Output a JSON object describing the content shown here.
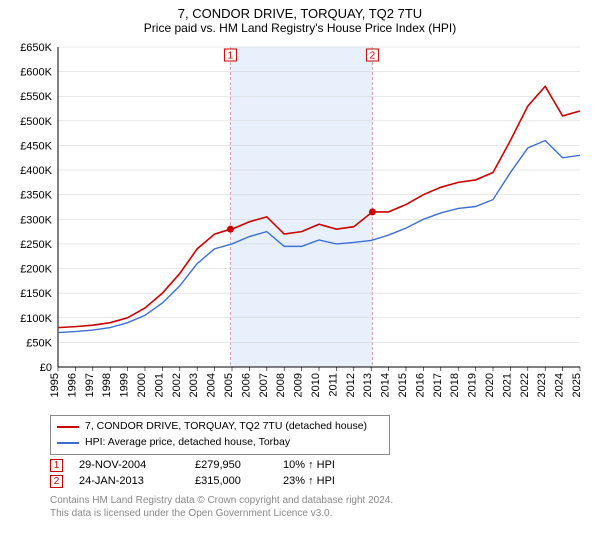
{
  "title": "7, CONDOR DRIVE, TORQUAY, TQ2 7TU",
  "subtitle": "Price paid vs. HM Land Registry's House Price Index (HPI)",
  "chart": {
    "type": "line",
    "background_color": "#ffffff",
    "grid_color": "#d0d0d0",
    "axis_color": "#000000",
    "y_axis": {
      "min": 0,
      "max": 650000,
      "tick_step": 50000,
      "tick_labels": [
        "£0",
        "£50K",
        "£100K",
        "£150K",
        "£200K",
        "£250K",
        "£300K",
        "£350K",
        "£400K",
        "£450K",
        "£500K",
        "£550K",
        "£600K",
        "£650K"
      ],
      "label_fontsize": 11
    },
    "x_axis": {
      "min": 1995,
      "max": 2025,
      "tick_step": 1,
      "tick_labels": [
        "1995",
        "1996",
        "1997",
        "1998",
        "1999",
        "2000",
        "2001",
        "2002",
        "2003",
        "2004",
        "2005",
        "2006",
        "2007",
        "2008",
        "2009",
        "2010",
        "2011",
        "2012",
        "2013",
        "2014",
        "2015",
        "2016",
        "2017",
        "2018",
        "2019",
        "2020",
        "2021",
        "2022",
        "2023",
        "2024",
        "2025"
      ],
      "label_fontsize": 11,
      "label_rotation": -90
    },
    "sale_band": {
      "start_year": 2004.91,
      "end_year": 2013.07,
      "fill": "#e8f0fb",
      "border_color": "#d6a0a0",
      "border_dash": "3,2"
    },
    "series": [
      {
        "name": "price_paid",
        "color": "#cc0000",
        "line_width": 1.6,
        "points": [
          [
            1995,
            80000
          ],
          [
            1996,
            82000
          ],
          [
            1997,
            85000
          ],
          [
            1998,
            90000
          ],
          [
            1999,
            100000
          ],
          [
            2000,
            120000
          ],
          [
            2001,
            150000
          ],
          [
            2002,
            190000
          ],
          [
            2003,
            240000
          ],
          [
            2004,
            270000
          ],
          [
            2004.91,
            279950
          ],
          [
            2005,
            280000
          ],
          [
            2006,
            295000
          ],
          [
            2007,
            305000
          ],
          [
            2008,
            270000
          ],
          [
            2009,
            275000
          ],
          [
            2010,
            290000
          ],
          [
            2011,
            280000
          ],
          [
            2012,
            285000
          ],
          [
            2013.07,
            315000
          ],
          [
            2014,
            315000
          ],
          [
            2015,
            330000
          ],
          [
            2016,
            350000
          ],
          [
            2017,
            365000
          ],
          [
            2018,
            375000
          ],
          [
            2019,
            380000
          ],
          [
            2020,
            395000
          ],
          [
            2021,
            460000
          ],
          [
            2022,
            530000
          ],
          [
            2023,
            570000
          ],
          [
            2024,
            510000
          ],
          [
            2025,
            520000
          ]
        ]
      },
      {
        "name": "hpi",
        "color": "#3b6fd6",
        "line_width": 1.4,
        "points": [
          [
            1995,
            70000
          ],
          [
            1996,
            72000
          ],
          [
            1997,
            75000
          ],
          [
            1998,
            80000
          ],
          [
            1999,
            90000
          ],
          [
            2000,
            105000
          ],
          [
            2001,
            130000
          ],
          [
            2002,
            165000
          ],
          [
            2003,
            210000
          ],
          [
            2004,
            240000
          ],
          [
            2005,
            250000
          ],
          [
            2006,
            265000
          ],
          [
            2007,
            275000
          ],
          [
            2008,
            245000
          ],
          [
            2009,
            245000
          ],
          [
            2010,
            258000
          ],
          [
            2011,
            250000
          ],
          [
            2012,
            253000
          ],
          [
            2013,
            257000
          ],
          [
            2014,
            268000
          ],
          [
            2015,
            282000
          ],
          [
            2016,
            300000
          ],
          [
            2017,
            313000
          ],
          [
            2018,
            322000
          ],
          [
            2019,
            326000
          ],
          [
            2020,
            340000
          ],
          [
            2021,
            395000
          ],
          [
            2022,
            445000
          ],
          [
            2023,
            460000
          ],
          [
            2024,
            425000
          ],
          [
            2025,
            430000
          ]
        ]
      }
    ],
    "sale_markers": [
      {
        "id": "1",
        "year": 2004.91,
        "value": 279950,
        "color": "#cc0000"
      },
      {
        "id": "2",
        "year": 2013.07,
        "value": 315000,
        "color": "#cc0000"
      }
    ]
  },
  "legend": [
    {
      "color": "#cc0000",
      "label": "7, CONDOR DRIVE, TORQUAY, TQ2 7TU (detached house)"
    },
    {
      "color": "#3b6fd6",
      "label": "HPI: Average price, detached house, Torbay"
    }
  ],
  "sales": [
    {
      "id": "1",
      "date": "29-NOV-2004",
      "price": "£279,950",
      "delta": "10% ↑ HPI"
    },
    {
      "id": "2",
      "date": "24-JAN-2013",
      "price": "£315,000",
      "delta": "23% ↑ HPI"
    }
  ],
  "footer": {
    "line1": "Contains HM Land Registry data © Crown copyright and database right 2024.",
    "line2": "This data is licensed under the Open Government Licence v3.0."
  }
}
